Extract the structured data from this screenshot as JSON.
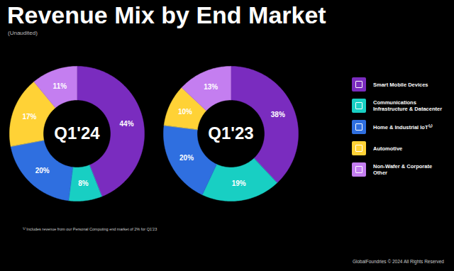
{
  "title": "Revenue Mix by End Market",
  "subtitle": "(Unaudited)",
  "footnote": "⁽¹⁾ Includes revenue from our Personal Computing end market of 2% for Q1'23",
  "footer": "GlobalFoundries © 2024 All Rights Reserved",
  "chart_data": [
    {
      "type": "donut",
      "title": "Q1'24",
      "categories": [
        "Smart Mobile Devices",
        "Communications Infrastructure & Datacenter",
        "Home & Industrial IoT⁽¹⁾",
        "Automotive",
        "Non-Wafer & Corporate Other"
      ],
      "values": [
        44,
        8,
        20,
        17,
        11
      ],
      "value_labels": [
        "44%",
        "8%",
        "20%",
        "17%",
        "11%"
      ],
      "colors": [
        "#7a2cbf",
        "#18cfc3",
        "#2f6fe0",
        "#ffd236",
        "#c47ef0"
      ],
      "data_labels": true,
      "legend": "right"
    },
    {
      "type": "donut",
      "title": "Q1'23",
      "categories": [
        "Smart Mobile Devices",
        "Communications Infrastructure & Datacenter",
        "Home & Industrial IoT⁽¹⁾",
        "Automotive",
        "Non-Wafer & Corporate Other"
      ],
      "values": [
        38,
        19,
        20,
        10,
        13
      ],
      "value_labels": [
        "38%",
        "19%",
        "20%",
        "10%",
        "13%"
      ],
      "colors": [
        "#7a2cbf",
        "#18cfc3",
        "#2f6fe0",
        "#ffd236",
        "#c47ef0"
      ],
      "data_labels": true
    }
  ]
}
